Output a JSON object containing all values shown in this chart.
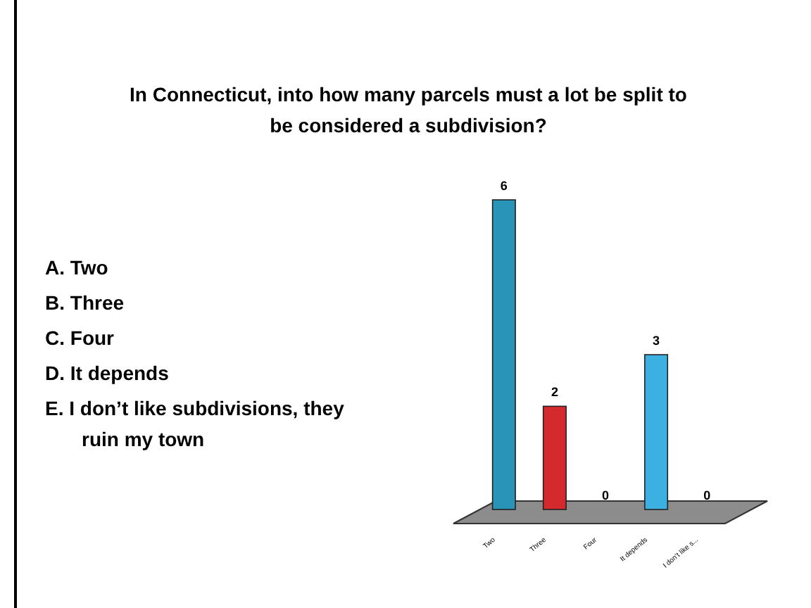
{
  "chart_data": {
    "type": "bar",
    "title": "In Connecticut, into how many parcels must a lot be split  to be considered a subdivision?",
    "categories": [
      "Two",
      "Three",
      "Four",
      "It depends",
      "I don’t like s..."
    ],
    "values": [
      6,
      2,
      0,
      3,
      0
    ],
    "colors": [
      "#2a94b8",
      "#d42a2e",
      "#e0741e",
      "#3cb0e0",
      "#c9dcdc"
    ],
    "data_labels": true,
    "annotations": [
      "A.  Two",
      "B.  Three",
      "C.  Four",
      "D.  It depends",
      "E.  I don’t like subdivisions, they ruin my town"
    ]
  }
}
